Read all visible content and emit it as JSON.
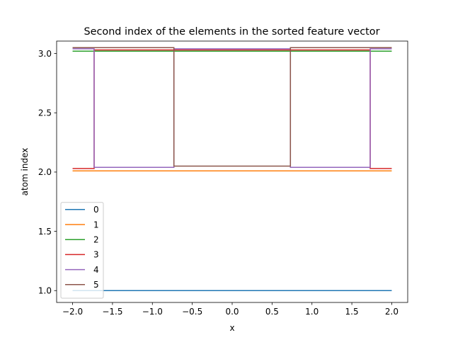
{
  "chart_data": {
    "type": "line",
    "title": "Second index of the elements in the sorted feature vector",
    "xlabel": "x",
    "ylabel": "atom index",
    "xlim": [
      -2.2,
      2.2
    ],
    "ylim": [
      0.9,
      3.105
    ],
    "xticks": [
      -2.0,
      -1.5,
      -1.0,
      -0.5,
      0.0,
      0.5,
      1.0,
      1.5,
      2.0
    ],
    "xtick_labels": [
      "−2.0",
      "−1.5",
      "−1.0",
      "−0.5",
      "0.0",
      "0.5",
      "1.0",
      "1.5",
      "2.0"
    ],
    "yticks": [
      1.0,
      1.5,
      2.0,
      2.5,
      3.0
    ],
    "ytick_labels": [
      "1.0",
      "1.5",
      "2.0",
      "2.5",
      "3.0"
    ],
    "grid": false,
    "legend": "lower-left",
    "series": [
      {
        "name": "0",
        "color": "#1f77b4",
        "x": [
          -2.0,
          2.0
        ],
        "y": [
          1.0,
          1.0
        ]
      },
      {
        "name": "1",
        "color": "#ff7f0e",
        "x": [
          -2.0,
          2.0
        ],
        "y": [
          2.01,
          2.01
        ]
      },
      {
        "name": "2",
        "color": "#2ca02c",
        "x": [
          -2.0,
          2.0
        ],
        "y": [
          3.02,
          3.02
        ]
      },
      {
        "name": "3",
        "color": "#d62728",
        "x": [
          -2.0,
          -1.73,
          -1.73,
          -0.73,
          -0.73,
          0.73,
          0.73,
          1.73,
          1.73,
          2.0
        ],
        "y": [
          2.03,
          2.03,
          3.03,
          3.03,
          3.03,
          3.03,
          3.03,
          3.03,
          2.03,
          2.03
        ]
      },
      {
        "name": "4",
        "color": "#9467bd",
        "x": [
          -2.0,
          -1.73,
          -1.73,
          -0.73,
          -0.73,
          0.73,
          0.73,
          1.73,
          1.73,
          2.0
        ],
        "y": [
          3.04,
          3.04,
          2.04,
          2.04,
          3.04,
          3.04,
          2.04,
          2.04,
          3.04,
          3.04
        ]
      },
      {
        "name": "5",
        "color": "#8c564b",
        "x": [
          -2.0,
          -0.73,
          -0.73,
          0.73,
          0.73,
          2.0
        ],
        "y": [
          3.05,
          3.05,
          2.05,
          2.05,
          3.05,
          3.05
        ]
      }
    ]
  }
}
